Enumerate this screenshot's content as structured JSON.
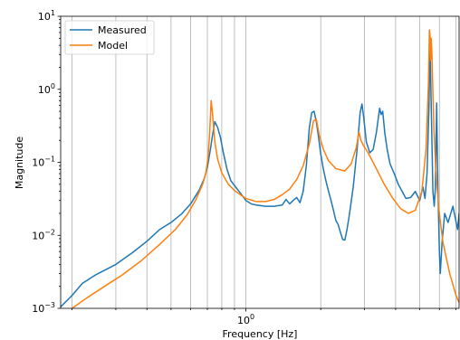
{
  "chart_data": {
    "type": "line",
    "title": "",
    "xlabel": "Frequency [Hz]",
    "ylabel": "Magnitude",
    "xscale": "log",
    "yscale": "log",
    "xlim": [
      0.18,
      7.2
    ],
    "ylim": [
      0.001,
      10
    ],
    "grid": "x-major-and-minor",
    "legend_position": "top-left",
    "x_tick_labels": [
      {
        "value": 1,
        "base": "10",
        "exp": "0"
      }
    ],
    "y_tick_labels": [
      {
        "value": 0.001,
        "base": "10",
        "exp": "−3"
      },
      {
        "value": 0.01,
        "base": "10",
        "exp": "−2"
      },
      {
        "value": 0.1,
        "base": "10",
        "exp": "−1"
      },
      {
        "value": 1,
        "base": "10",
        "exp": "0"
      },
      {
        "value": 10,
        "base": "10",
        "exp": "1"
      }
    ],
    "series": [
      {
        "name": "Measured",
        "color": "#1f77b4",
        "points": [
          [
            0.18,
            0.00105
          ],
          [
            0.2,
            0.0015
          ],
          [
            0.22,
            0.0022
          ],
          [
            0.25,
            0.0029
          ],
          [
            0.3,
            0.004
          ],
          [
            0.35,
            0.0058
          ],
          [
            0.4,
            0.0083
          ],
          [
            0.45,
            0.012
          ],
          [
            0.5,
            0.015
          ],
          [
            0.55,
            0.0195
          ],
          [
            0.6,
            0.027
          ],
          [
            0.65,
            0.042
          ],
          [
            0.68,
            0.06
          ],
          [
            0.7,
            0.085
          ],
          [
            0.72,
            0.15
          ],
          [
            0.735,
            0.24
          ],
          [
            0.75,
            0.36
          ],
          [
            0.77,
            0.3
          ],
          [
            0.79,
            0.22
          ],
          [
            0.81,
            0.14
          ],
          [
            0.84,
            0.08
          ],
          [
            0.87,
            0.056
          ],
          [
            0.9,
            0.048
          ],
          [
            0.95,
            0.038
          ],
          [
            1.0,
            0.03
          ],
          [
            1.05,
            0.027
          ],
          [
            1.1,
            0.026
          ],
          [
            1.2,
            0.025
          ],
          [
            1.3,
            0.025
          ],
          [
            1.4,
            0.026
          ],
          [
            1.45,
            0.031
          ],
          [
            1.5,
            0.027
          ],
          [
            1.55,
            0.03
          ],
          [
            1.6,
            0.033
          ],
          [
            1.65,
            0.028
          ],
          [
            1.7,
            0.04
          ],
          [
            1.75,
            0.09
          ],
          [
            1.8,
            0.3
          ],
          [
            1.84,
            0.48
          ],
          [
            1.88,
            0.5
          ],
          [
            1.92,
            0.36
          ],
          [
            1.96,
            0.22
          ],
          [
            2.0,
            0.13
          ],
          [
            2.05,
            0.08
          ],
          [
            2.1,
            0.055
          ],
          [
            2.15,
            0.04
          ],
          [
            2.2,
            0.03
          ],
          [
            2.25,
            0.022
          ],
          [
            2.3,
            0.016
          ],
          [
            2.35,
            0.014
          ],
          [
            2.4,
            0.011
          ],
          [
            2.45,
            0.0088
          ],
          [
            2.5,
            0.0086
          ],
          [
            2.55,
            0.012
          ],
          [
            2.6,
            0.018
          ],
          [
            2.7,
            0.045
          ],
          [
            2.8,
            0.15
          ],
          [
            2.88,
            0.48
          ],
          [
            2.93,
            0.63
          ],
          [
            2.98,
            0.4
          ],
          [
            3.05,
            0.19
          ],
          [
            3.15,
            0.135
          ],
          [
            3.25,
            0.15
          ],
          [
            3.35,
            0.26
          ],
          [
            3.45,
            0.55
          ],
          [
            3.5,
            0.45
          ],
          [
            3.55,
            0.5
          ],
          [
            3.62,
            0.25
          ],
          [
            3.7,
            0.15
          ],
          [
            3.8,
            0.095
          ],
          [
            3.95,
            0.07
          ],
          [
            4.1,
            0.05
          ],
          [
            4.25,
            0.04
          ],
          [
            4.4,
            0.032
          ],
          [
            4.6,
            0.033
          ],
          [
            4.8,
            0.04
          ],
          [
            5.0,
            0.03
          ],
          [
            5.15,
            0.046
          ],
          [
            5.25,
            0.032
          ],
          [
            5.35,
            0.07
          ],
          [
            5.45,
            0.6
          ],
          [
            5.5,
            4.5
          ],
          [
            5.55,
            0.9
          ],
          [
            5.65,
            0.04
          ],
          [
            5.72,
            0.025
          ],
          [
            5.78,
            0.045
          ],
          [
            5.85,
            0.65
          ],
          [
            5.92,
            0.04
          ],
          [
            6.0,
            0.006
          ],
          [
            6.05,
            0.003
          ],
          [
            6.15,
            0.008
          ],
          [
            6.3,
            0.02
          ],
          [
            6.5,
            0.015
          ],
          [
            6.8,
            0.025
          ],
          [
            7.1,
            0.012
          ],
          [
            7.2,
            0.02
          ]
        ]
      },
      {
        "name": "Model",
        "color": "#ff7f0e",
        "points": [
          [
            0.2,
            0.001
          ],
          [
            0.23,
            0.0014
          ],
          [
            0.27,
            0.002
          ],
          [
            0.32,
            0.0029
          ],
          [
            0.38,
            0.0045
          ],
          [
            0.45,
            0.0075
          ],
          [
            0.52,
            0.012
          ],
          [
            0.58,
            0.019
          ],
          [
            0.63,
            0.031
          ],
          [
            0.67,
            0.05
          ],
          [
            0.69,
            0.07
          ],
          [
            0.705,
            0.12
          ],
          [
            0.715,
            0.25
          ],
          [
            0.725,
            0.7
          ],
          [
            0.735,
            0.45
          ],
          [
            0.75,
            0.19
          ],
          [
            0.77,
            0.11
          ],
          [
            0.8,
            0.072
          ],
          [
            0.85,
            0.05
          ],
          [
            0.9,
            0.041
          ],
          [
            1.0,
            0.032
          ],
          [
            1.1,
            0.029
          ],
          [
            1.2,
            0.029
          ],
          [
            1.3,
            0.031
          ],
          [
            1.4,
            0.036
          ],
          [
            1.5,
            0.043
          ],
          [
            1.6,
            0.058
          ],
          [
            1.7,
            0.09
          ],
          [
            1.8,
            0.18
          ],
          [
            1.87,
            0.37
          ],
          [
            1.92,
            0.39
          ],
          [
            1.97,
            0.24
          ],
          [
            2.05,
            0.15
          ],
          [
            2.15,
            0.105
          ],
          [
            2.3,
            0.082
          ],
          [
            2.5,
            0.076
          ],
          [
            2.65,
            0.095
          ],
          [
            2.78,
            0.16
          ],
          [
            2.85,
            0.26
          ],
          [
            2.9,
            0.2
          ],
          [
            2.97,
            0.17
          ],
          [
            3.1,
            0.135
          ],
          [
            3.3,
            0.09
          ],
          [
            3.6,
            0.05
          ],
          [
            3.9,
            0.032
          ],
          [
            4.2,
            0.023
          ],
          [
            4.5,
            0.02
          ],
          [
            4.8,
            0.022
          ],
          [
            5.1,
            0.04
          ],
          [
            5.3,
            0.15
          ],
          [
            5.42,
            1.2
          ],
          [
            5.47,
            6.5
          ],
          [
            5.5,
            5.5
          ],
          [
            5.53,
            2.5
          ],
          [
            5.56,
            5.0
          ],
          [
            5.6,
            3.0
          ],
          [
            5.65,
            0.9
          ],
          [
            5.7,
            0.3
          ],
          [
            5.8,
            0.08
          ],
          [
            5.95,
            0.025
          ],
          [
            6.2,
            0.008
          ],
          [
            6.6,
            0.003
          ],
          [
            7.0,
            0.0015
          ],
          [
            7.2,
            0.0012
          ]
        ]
      }
    ]
  }
}
